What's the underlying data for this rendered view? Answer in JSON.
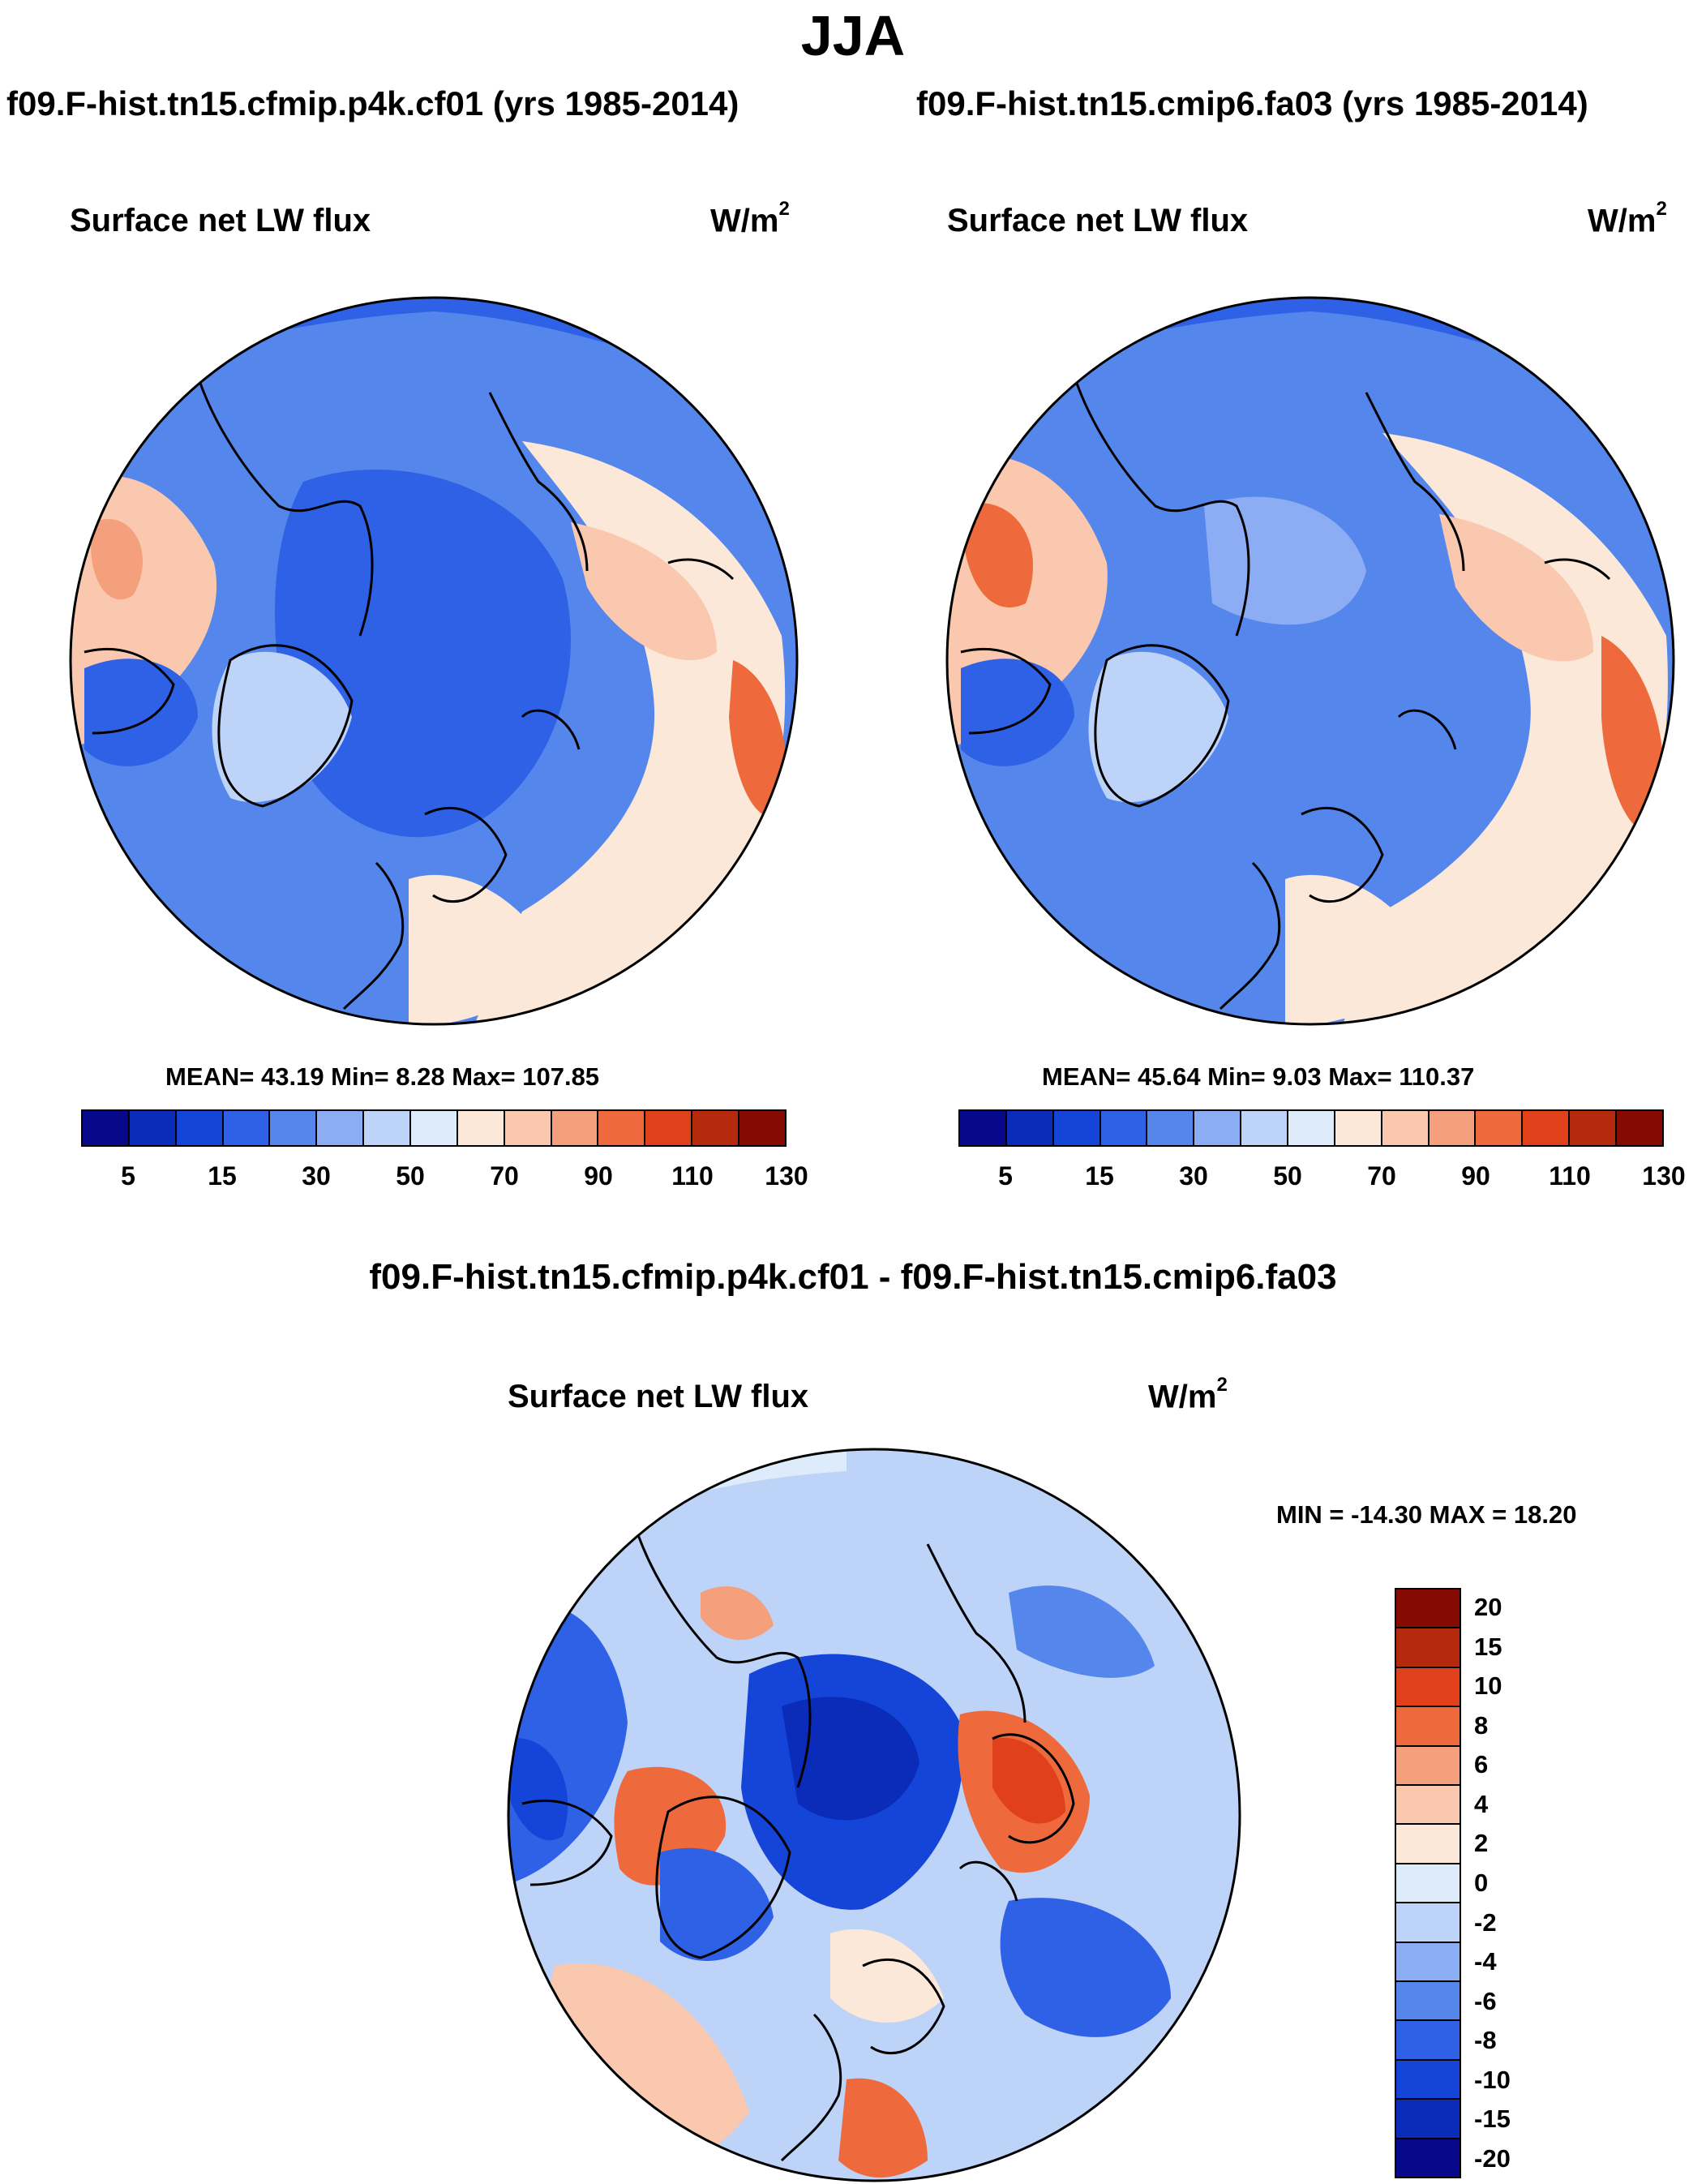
{
  "season": "JJA",
  "colors": {
    "abs_scale": [
      "#08098a",
      "#0a2cb8",
      "#1545d8",
      "#2e61e6",
      "#5486ec",
      "#8cadf3",
      "#bdd3f8",
      "#ddebfb",
      "#fce8d8",
      "#f9c8ae",
      "#f4a07c",
      "#ee6a3c",
      "#e0401a",
      "#b52a0c",
      "#850a02"
    ],
    "diff_scale": [
      "#850a02",
      "#b52a0c",
      "#e0401a",
      "#ee6a3c",
      "#f4a07c",
      "#f9c8ae",
      "#fce8d8",
      "#ddebfb",
      "#bdd3f8",
      "#8cadf3",
      "#5486ec",
      "#2e61e6",
      "#1545d8",
      "#0a2cb8",
      "#08098a"
    ]
  },
  "panels": {
    "left": {
      "run": "f09.F-hist.tn15.cfmip.p4k.cf01 (yrs 1985-2014)",
      "variable": "Surface net LW flux",
      "units": "W/m",
      "units_exp": "2",
      "stats": "MEAN=  43.19  Min=   8.28  Max= 107.85"
    },
    "right": {
      "run": "f09.F-hist.tn15.cmip6.fa03 (yrs 1985-2014)",
      "variable": "Surface net LW flux",
      "units": "W/m",
      "units_exp": "2",
      "stats": "MEAN=  45.64  Min=   9.03  Max= 110.37"
    },
    "diff": {
      "title": "f09.F-hist.tn15.cfmip.p4k.cf01 - f09.F-hist.tn15.cmip6.fa03",
      "variable": "Surface net LW flux",
      "units": "W/m",
      "units_exp": "2",
      "stats": "MIN = -14.30 MAX =  18.20"
    }
  },
  "abs_colorbar_labels": [
    "5",
    "15",
    "30",
    "50",
    "70",
    "90",
    "110",
    "130"
  ],
  "diff_colorbar_labels": [
    "20",
    "15",
    "10",
    "8",
    "6",
    "4",
    "2",
    "0",
    "-2",
    "-4",
    "-6",
    "-8",
    "-10",
    "-15",
    "-20"
  ]
}
